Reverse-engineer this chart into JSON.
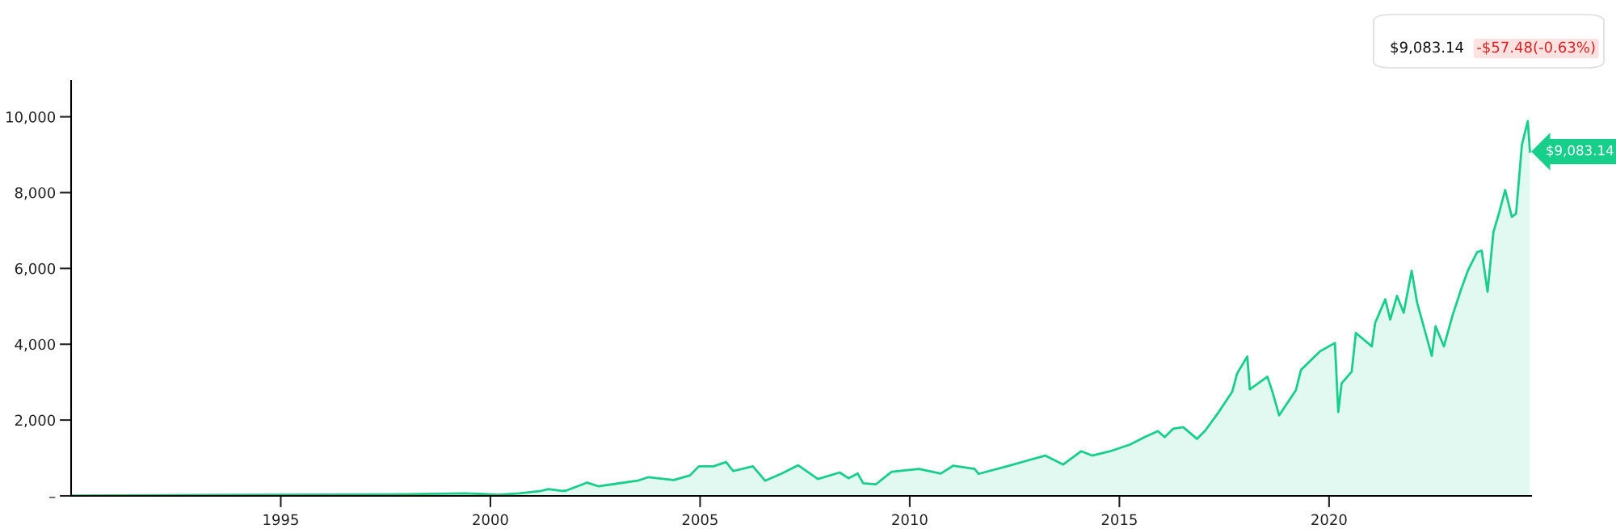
{
  "chart_data": {
    "type": "area",
    "x": [
      1990,
      1997.58,
      1999.4,
      1999.83,
      2000.18,
      2000.69,
      2001.21,
      2001.38,
      2001.72,
      2001.79,
      2002.31,
      2002.57,
      2003.51,
      2003.77,
      2004.37,
      2004.76,
      2004.97,
      2005.32,
      2005.62,
      2005.79,
      2006.26,
      2006.55,
      2006.95,
      2007.34,
      2007.81,
      2008.33,
      2008.54,
      2008.76,
      2008.89,
      2009.19,
      2009.57,
      2010.22,
      2010.74,
      2011.04,
      2011.55,
      2011.64,
      2012.37,
      2013.23,
      2013.66,
      2014.09,
      2014.35,
      2014.78,
      2015.25,
      2015.6,
      2015.92,
      2016.08,
      2016.28,
      2016.52,
      2016.85,
      2017.05,
      2017.37,
      2017.69,
      2017.81,
      2018.05,
      2018.11,
      2018.53,
      2018.65,
      2018.81,
      2019.21,
      2019.33,
      2019.78,
      2020.14,
      2020.22,
      2020.3,
      2020.54,
      2020.64,
      2021.02,
      2021.1,
      2021.34,
      2021.46,
      2021.62,
      2021.78,
      2021.97,
      2022.1,
      2022.3,
      2022.45,
      2022.54,
      2022.74,
      2022.94,
      2023.15,
      2023.31,
      2023.53,
      2023.64,
      2023.78,
      2023.92,
      2024.04,
      2024.2,
      2024.36,
      2024.46,
      2024.6,
      2024.74,
      2024.79
    ],
    "series": [
      {
        "color": "#17cf8a",
        "values": [
          10,
          38,
          66,
          48,
          30,
          66,
          133,
          180,
          133,
          133,
          350,
          255,
          400,
          495,
          418,
          540,
          780,
          780,
          893,
          655,
          780,
          400,
          590,
          808,
          446,
          618,
          465,
          590,
          333,
          304,
          637,
          712,
          590,
          798,
          712,
          580,
          798,
          1064,
          826,
          1178,
          1064,
          1178,
          1353,
          1548,
          1708,
          1548,
          1770,
          1814,
          1504,
          1726,
          2214,
          2746,
          3234,
          3677,
          2808,
          3145,
          2746,
          2125,
          2790,
          3322,
          3810,
          4034,
          2214,
          2968,
          3278,
          4298,
          3943,
          4564,
          5185,
          4653,
          5274,
          4830,
          5939,
          5097,
          4298,
          3695,
          4475,
          3943,
          4742,
          5451,
          5939,
          6427,
          6472,
          5381,
          6960,
          7404,
          8069,
          7359,
          7448,
          9266,
          9887,
          9083.14
        ]
      }
    ],
    "xlim": [
      1990,
      2024.82
    ],
    "xticks": [
      1995,
      2000,
      2005,
      2010,
      2015,
      2020
    ],
    "ylim": [
      0,
      10950
    ],
    "yticks": [
      {
        "value": 0,
        "label": "–"
      },
      {
        "value": 2000,
        "label": "2,000"
      },
      {
        "value": 4000,
        "label": "4,000"
      },
      {
        "value": 6000,
        "label": "6,000"
      },
      {
        "value": 8000,
        "label": "8,000"
      },
      {
        "value": 10000,
        "label": "10,000"
      }
    ],
    "grid": false,
    "annotations": [
      {
        "text": "$9,083.14",
        "x": 2024.79,
        "y": 9083.14
      },
      "$9,083.14",
      "-$57.48(-0.63%)"
    ]
  }
}
